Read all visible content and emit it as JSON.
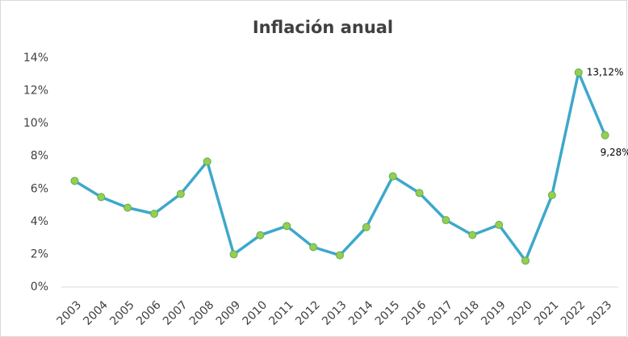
{
  "chart_data": {
    "type": "line",
    "title": "Inflación anual",
    "categories": [
      "2003",
      "2004",
      "2005",
      "2006",
      "2007",
      "2008",
      "2009",
      "2010",
      "2011",
      "2012",
      "2013",
      "2014",
      "2015",
      "2016",
      "2017",
      "2018",
      "2019",
      "2020",
      "2021",
      "2022",
      "2023"
    ],
    "values": [
      6.49,
      5.5,
      4.85,
      4.48,
      5.69,
      7.67,
      2.0,
      3.17,
      3.73,
      2.44,
      1.94,
      3.66,
      6.77,
      5.75,
      4.09,
      3.18,
      3.8,
      1.61,
      5.62,
      13.12,
      9.28
    ],
    "value_labels": [
      null,
      null,
      null,
      null,
      null,
      null,
      null,
      null,
      null,
      null,
      null,
      null,
      null,
      null,
      null,
      null,
      null,
      null,
      null,
      "13,12%",
      "9,28%"
    ],
    "color": "#3ea8cb",
    "marker_color": "#92d050",
    "ylim": [
      0,
      14
    ],
    "yticks": [
      {
        "value": 0,
        "label": "0%"
      },
      {
        "value": 2,
        "label": "2%"
      },
      {
        "value": 4,
        "label": "4%"
      },
      {
        "value": 6,
        "label": "6%"
      },
      {
        "value": 8,
        "label": "8%"
      },
      {
        "value": 10,
        "label": "10%"
      },
      {
        "value": 12,
        "label": "12%"
      },
      {
        "value": 14,
        "label": "14%"
      }
    ],
    "grid": false
  }
}
